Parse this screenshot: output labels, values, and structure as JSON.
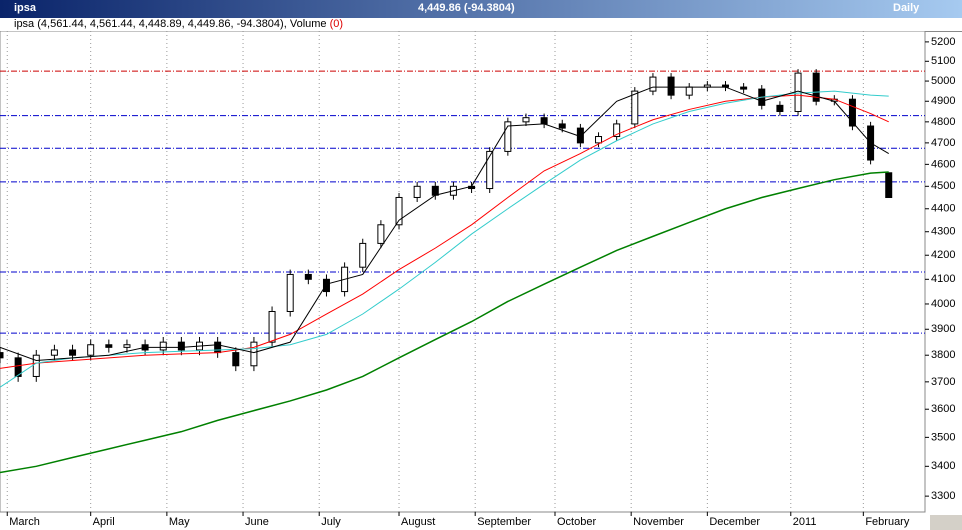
{
  "window": {
    "title": "ipsa",
    "quote": "4,449.86 (-94.3804)",
    "period": "Daily",
    "legend": "ipsa (4,561.44, 4,561.44, 4,448.89, 4,449.86, -94.3804)",
    "volume": "Volume",
    "volume_value": "(0)"
  },
  "chart_data": {
    "type": "candlestick",
    "x": [
      0,
      5,
      10,
      15,
      20,
      25,
      30,
      35,
      40,
      45,
      50,
      55,
      60,
      65,
      70,
      75,
      80,
      85,
      90,
      95,
      100,
      105,
      110,
      115,
      120,
      125,
      130,
      135,
      140,
      145,
      150,
      155,
      160,
      165,
      170,
      175,
      180,
      185,
      190,
      195,
      200,
      205,
      210,
      215,
      220,
      225,
      230,
      235,
      240,
      245
    ],
    "open": [
      3810,
      3790,
      3720,
      3800,
      3820,
      3800,
      3840,
      3830,
      3840,
      3820,
      3850,
      3820,
      3850,
      3810,
      3760,
      3850,
      3970,
      4120,
      4100,
      4050,
      4150,
      4250,
      4330,
      4450,
      4500,
      4460,
      4500,
      4490,
      4660,
      4800,
      4820,
      4790,
      4770,
      4700,
      4730,
      4790,
      4950,
      5020,
      4930,
      4970,
      4980,
      4970,
      4960,
      4880,
      4850,
      5040,
      4900,
      4910,
      4780,
      4561.44
    ],
    "high": [
      3830,
      3810,
      3820,
      3840,
      3840,
      3860,
      3860,
      3860,
      3860,
      3870,
      3870,
      3870,
      3870,
      3830,
      3870,
      3990,
      4140,
      4140,
      4120,
      4170,
      4270,
      4350,
      4470,
      4520,
      4520,
      4520,
      4520,
      4680,
      4820,
      4840,
      4840,
      4810,
      4790,
      4750,
      4810,
      4970,
      5040,
      5040,
      4990,
      5000,
      5000,
      4990,
      4980,
      4900,
      5060,
      5060,
      4930,
      4930,
      4800,
      4561.44
    ],
    "low": [
      3770,
      3700,
      3700,
      3780,
      3780,
      3780,
      3810,
      3810,
      3800,
      3800,
      3800,
      3800,
      3790,
      3740,
      3740,
      3830,
      3950,
      4080,
      4030,
      4030,
      4130,
      4230,
      4310,
      4430,
      4440,
      4440,
      4470,
      4470,
      4640,
      4780,
      4770,
      4750,
      4680,
      4680,
      4710,
      4770,
      4930,
      4910,
      4910,
      4950,
      4950,
      4940,
      4860,
      4830,
      4830,
      4880,
      4880,
      4760,
      4600,
      4448.89
    ],
    "close": [
      3790,
      3720,
      3800,
      3820,
      3800,
      3840,
      3830,
      3840,
      3820,
      3850,
      3820,
      3850,
      3810,
      3760,
      3850,
      3970,
      4120,
      4100,
      4050,
      4150,
      4250,
      4330,
      4450,
      4500,
      4460,
      4500,
      4490,
      4660,
      4800,
      4820,
      4790,
      4770,
      4700,
      4730,
      4790,
      4950,
      5020,
      4930,
      4970,
      4980,
      4970,
      4960,
      4880,
      4850,
      5040,
      4900,
      4910,
      4780,
      4620,
      4449.86
    ],
    "up_color": "#ffffff",
    "down_color": "#000000",
    "lines": [
      {
        "color": "#008000",
        "x": [
          0,
          10,
          20,
          30,
          40,
          50,
          60,
          70,
          80,
          90,
          100,
          110,
          120,
          130,
          140,
          150,
          160,
          170,
          180,
          190,
          200,
          210,
          220,
          230,
          240,
          245
        ],
        "values": [
          3379,
          3400,
          3430,
          3460,
          3490,
          3520,
          3560,
          3595,
          3630,
          3670,
          3720,
          3790,
          3860,
          3930,
          4010,
          4080,
          4150,
          4220,
          4280,
          4340,
          4400,
          4450,
          4490,
          4530,
          4560,
          4565
        ]
      },
      {
        "color": "#ff0000",
        "x": [
          0,
          10,
          20,
          30,
          40,
          50,
          60,
          70,
          80,
          90,
          100,
          110,
          120,
          130,
          140,
          150,
          160,
          170,
          180,
          190,
          200,
          210,
          220,
          230,
          240,
          245
        ],
        "values": [
          3750,
          3770,
          3780,
          3790,
          3800,
          3805,
          3810,
          3830,
          3880,
          3960,
          4040,
          4140,
          4230,
          4330,
          4450,
          4570,
          4650,
          4740,
          4810,
          4860,
          4900,
          4920,
          4930,
          4910,
          4840,
          4800
        ]
      },
      {
        "color": "#33cccc",
        "x": [
          0,
          10,
          20,
          30,
          40,
          50,
          60,
          70,
          80,
          90,
          100,
          110,
          120,
          130,
          140,
          150,
          160,
          170,
          180,
          190,
          200,
          210,
          220,
          230,
          240,
          245
        ],
        "values": [
          3680,
          3770,
          3790,
          3800,
          3810,
          3815,
          3820,
          3825,
          3840,
          3880,
          3960,
          4060,
          4170,
          4290,
          4400,
          4510,
          4620,
          4710,
          4790,
          4850,
          4890,
          4920,
          4940,
          4950,
          4930,
          4925
        ]
      },
      {
        "color": "#000000",
        "x": [
          0,
          10,
          20,
          30,
          40,
          50,
          60,
          70,
          80,
          90,
          100,
          110,
          120,
          130,
          140,
          150,
          160,
          170,
          180,
          190,
          200,
          210,
          220,
          230,
          240,
          245
        ],
        "values": [
          3830,
          3780,
          3790,
          3800,
          3830,
          3830,
          3840,
          3810,
          3850,
          4080,
          4120,
          4350,
          4460,
          4500,
          4780,
          4790,
          4730,
          4900,
          4970,
          4970,
          4970,
          4900,
          4950,
          4900,
          4700,
          4650
        ]
      }
    ],
    "hlines": [
      {
        "value": 5050,
        "color": "#cc0000"
      },
      {
        "value": 4830,
        "color": "#0000cc"
      },
      {
        "value": 4675,
        "color": "#0000cc"
      },
      {
        "value": 4520,
        "color": "#0000cc"
      },
      {
        "value": 4130,
        "color": "#0000cc"
      },
      {
        "value": 3885,
        "color": "#0000cc"
      }
    ],
    "xlim": [
      0,
      255
    ],
    "xticks": [
      {
        "value": 2,
        "label": "March"
      },
      {
        "value": 25,
        "label": "April"
      },
      {
        "value": 46,
        "label": "May"
      },
      {
        "value": 67,
        "label": "June"
      },
      {
        "value": 88,
        "label": "July"
      },
      {
        "value": 110,
        "label": "August"
      },
      {
        "value": 131,
        "label": "September"
      },
      {
        "value": 153,
        "label": "October"
      },
      {
        "value": 174,
        "label": "November"
      },
      {
        "value": 195,
        "label": "December"
      },
      {
        "value": 218,
        "label": "2011"
      },
      {
        "value": 238,
        "label": "February"
      }
    ],
    "ylim": [
      3248,
      5257
    ],
    "log_y": true,
    "yticks": [
      3300,
      3400,
      3500,
      3600,
      3700,
      3800,
      3900,
      4000,
      4100,
      4200,
      4300,
      4400,
      4500,
      4600,
      4700,
      4800,
      4900,
      5000,
      5100,
      5200
    ],
    "grid": true
  }
}
